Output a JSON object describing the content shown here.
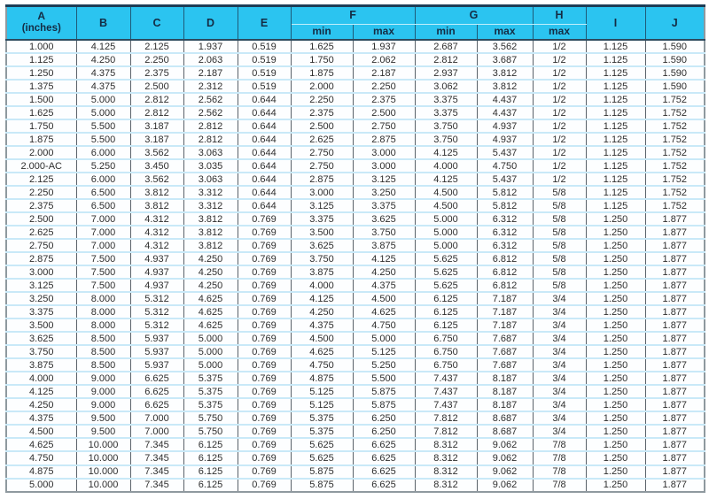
{
  "colors": {
    "header_bg": "#2bc4f0",
    "header_text": "#142c44",
    "row_divider": "#c9e9f8",
    "column_rule": "#5a626a",
    "outer_border": "#8f999f",
    "top_bar": "#1d3c55",
    "data_text": "#2e2e2e"
  },
  "table": {
    "header": {
      "col_a_line1": "A",
      "col_a_line2": "(inches)",
      "col_b": "B",
      "col_c": "C",
      "col_d": "D",
      "col_e": "E",
      "group_f": "F",
      "group_g": "G",
      "group_h": "H",
      "col_i": "I",
      "col_j": "J",
      "subs": [
        "min",
        "max",
        "min",
        "max",
        "max"
      ]
    },
    "rows": [
      [
        "1.000",
        "4.125",
        "2.125",
        "1.937",
        "0.519",
        "1.625",
        "1.937",
        "2.687",
        "3.562",
        "1/2",
        "1.125",
        "1.590"
      ],
      [
        "1.125",
        "4.250",
        "2.250",
        "2.063",
        "0.519",
        "1.750",
        "2.062",
        "2.812",
        "3.687",
        "1/2",
        "1.125",
        "1.590"
      ],
      [
        "1.250",
        "4.375",
        "2.375",
        "2.187",
        "0.519",
        "1.875",
        "2.187",
        "2.937",
        "3.812",
        "1/2",
        "1.125",
        "1.590"
      ],
      [
        "1.375",
        "4.375",
        "2.500",
        "2.312",
        "0.519",
        "2.000",
        "2.250",
        "3.062",
        "3.812",
        "1/2",
        "1.125",
        "1.590"
      ],
      [
        "1.500",
        "5.000",
        "2.812",
        "2.562",
        "0.644",
        "2.250",
        "2.375",
        "3.375",
        "4.437",
        "1/2",
        "1.125",
        "1.752"
      ],
      [
        "1.625",
        "5.000",
        "2.812",
        "2.562",
        "0.644",
        "2.375",
        "2.500",
        "3.375",
        "4.437",
        "1/2",
        "1.125",
        "1.752"
      ],
      [
        "1.750",
        "5.500",
        "3.187",
        "2.812",
        "0.644",
        "2.500",
        "2.750",
        "3.750",
        "4.937",
        "1/2",
        "1.125",
        "1.752"
      ],
      [
        "1.875",
        "5.500",
        "3.187",
        "2.812",
        "0.644",
        "2.625",
        "2.875",
        "3.750",
        "4.937",
        "1/2",
        "1.125",
        "1.752"
      ],
      [
        "2.000",
        "6.000",
        "3.562",
        "3.063",
        "0.644",
        "2.750",
        "3.000",
        "4.125",
        "5.437",
        "1/2",
        "1.125",
        "1.752"
      ],
      [
        "2.000-AC",
        "5.250",
        "3.450",
        "3.035",
        "0.644",
        "2.750",
        "3.000",
        "4.000",
        "4.750",
        "1/2",
        "1.125",
        "1.752"
      ],
      [
        "2.125",
        "6.000",
        "3.562",
        "3.063",
        "0.644",
        "2.875",
        "3.125",
        "4.125",
        "5.437",
        "1/2",
        "1.125",
        "1.752"
      ],
      [
        "2.250",
        "6.500",
        "3.812",
        "3.312",
        "0.644",
        "3.000",
        "3.250",
        "4.500",
        "5.812",
        "5/8",
        "1.125",
        "1.752"
      ],
      [
        "2.375",
        "6.500",
        "3.812",
        "3.312",
        "0.644",
        "3.125",
        "3.375",
        "4.500",
        "5.812",
        "5/8",
        "1.125",
        "1.752"
      ],
      [
        "2.500",
        "7.000",
        "4.312",
        "3.812",
        "0.769",
        "3.375",
        "3.625",
        "5.000",
        "6.312",
        "5/8",
        "1.250",
        "1.877"
      ],
      [
        "2.625",
        "7.000",
        "4.312",
        "3.812",
        "0.769",
        "3.500",
        "3.750",
        "5.000",
        "6.312",
        "5/8",
        "1.250",
        "1.877"
      ],
      [
        "2.750",
        "7.000",
        "4.312",
        "3.812",
        "0.769",
        "3.625",
        "3.875",
        "5.000",
        "6.312",
        "5/8",
        "1.250",
        "1.877"
      ],
      [
        "2.875",
        "7.500",
        "4.937",
        "4.250",
        "0.769",
        "3.750",
        "4.125",
        "5.625",
        "6.812",
        "5/8",
        "1.250",
        "1.877"
      ],
      [
        "3.000",
        "7.500",
        "4.937",
        "4.250",
        "0.769",
        "3.875",
        "4.250",
        "5.625",
        "6.812",
        "5/8",
        "1.250",
        "1.877"
      ],
      [
        "3.125",
        "7.500",
        "4.937",
        "4.250",
        "0.769",
        "4.000",
        "4.375",
        "5.625",
        "6.812",
        "5/8",
        "1.250",
        "1.877"
      ],
      [
        "3.250",
        "8.000",
        "5.312",
        "4.625",
        "0.769",
        "4.125",
        "4.500",
        "6.125",
        "7.187",
        "3/4",
        "1.250",
        "1.877"
      ],
      [
        "3.375",
        "8.000",
        "5.312",
        "4.625",
        "0.769",
        "4.250",
        "4.625",
        "6.125",
        "7.187",
        "3/4",
        "1.250",
        "1.877"
      ],
      [
        "3.500",
        "8.000",
        "5.312",
        "4.625",
        "0.769",
        "4.375",
        "4.750",
        "6.125",
        "7.187",
        "3/4",
        "1.250",
        "1.877"
      ],
      [
        "3.625",
        "8.500",
        "5.937",
        "5.000",
        "0.769",
        "4.500",
        "5.000",
        "6.750",
        "7.687",
        "3/4",
        "1.250",
        "1.877"
      ],
      [
        "3.750",
        "8.500",
        "5.937",
        "5.000",
        "0.769",
        "4.625",
        "5.125",
        "6.750",
        "7.687",
        "3/4",
        "1.250",
        "1.877"
      ],
      [
        "3.875",
        "8.500",
        "5.937",
        "5.000",
        "0.769",
        "4.750",
        "5.250",
        "6.750",
        "7.687",
        "3/4",
        "1.250",
        "1.877"
      ],
      [
        "4.000",
        "9.000",
        "6.625",
        "5.375",
        "0.769",
        "4.875",
        "5.500",
        "7.437",
        "8.187",
        "3/4",
        "1.250",
        "1.877"
      ],
      [
        "4.125",
        "9.000",
        "6.625",
        "5.375",
        "0.769",
        "5.125",
        "5.875",
        "7.437",
        "8.187",
        "3/4",
        "1.250",
        "1.877"
      ],
      [
        "4.250",
        "9.000",
        "6.625",
        "5.375",
        "0.769",
        "5.125",
        "5.875",
        "7.437",
        "8.187",
        "3/4",
        "1.250",
        "1.877"
      ],
      [
        "4.375",
        "9.500",
        "7.000",
        "5.750",
        "0.769",
        "5.375",
        "6.250",
        "7.812",
        "8.687",
        "3/4",
        "1.250",
        "1.877"
      ],
      [
        "4.500",
        "9.500",
        "7.000",
        "5.750",
        "0.769",
        "5.375",
        "6.250",
        "7.812",
        "8.687",
        "3/4",
        "1.250",
        "1.877"
      ],
      [
        "4.625",
        "10.000",
        "7.345",
        "6.125",
        "0.769",
        "5.625",
        "6.625",
        "8.312",
        "9.062",
        "7/8",
        "1.250",
        "1.877"
      ],
      [
        "4.750",
        "10.000",
        "7.345",
        "6.125",
        "0.769",
        "5.625",
        "6.625",
        "8.312",
        "9.062",
        "7/8",
        "1.250",
        "1.877"
      ],
      [
        "4.875",
        "10.000",
        "7.345",
        "6.125",
        "0.769",
        "5.875",
        "6.625",
        "8.312",
        "9.062",
        "7/8",
        "1.250",
        "1.877"
      ],
      [
        "5.000",
        "10.000",
        "7.345",
        "6.125",
        "0.769",
        "5.875",
        "6.625",
        "8.312",
        "9.062",
        "7/8",
        "1.250",
        "1.877"
      ]
    ]
  }
}
